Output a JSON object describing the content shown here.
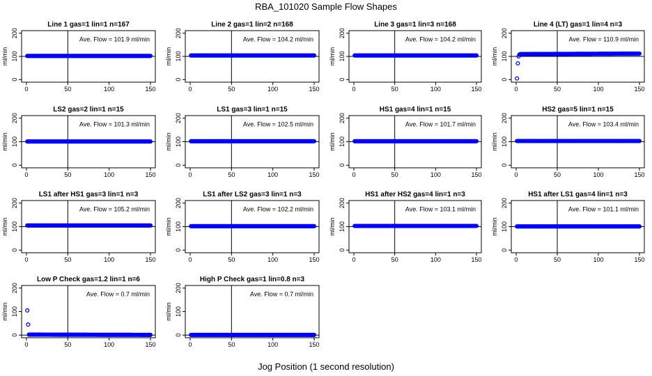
{
  "figure": {
    "title": "RBA_101020  Sample Flow Shapes",
    "xlabel": "Jog Position (1 second resolution)"
  },
  "colors": {
    "points": "#0000ff",
    "axes": "#000000",
    "background": "#ffffff"
  },
  "chart_data": [
    {
      "type": "scatter",
      "title": "Line 1 gas=1 lin=1 n=167",
      "ylabel": "ml/min",
      "xlim": [
        0,
        150
      ],
      "ylim": [
        0,
        200
      ],
      "xticks": [
        0,
        50,
        100,
        150
      ],
      "yticks": [
        0,
        100,
        200
      ],
      "hline": 100,
      "vline": 50,
      "annotation": "Ave. Flow =  101.9  ml/min",
      "series": [
        {
          "x": [
            1,
            150
          ],
          "y": [
            102,
            102
          ]
        }
      ]
    },
    {
      "type": "scatter",
      "title": "Line 2 gas=1 lin=2 n=168",
      "ylabel": "ml/min",
      "xlim": [
        0,
        150
      ],
      "ylim": [
        0,
        200
      ],
      "xticks": [
        0,
        50,
        100,
        150
      ],
      "yticks": [
        0,
        100,
        200
      ],
      "hline": 100,
      "vline": 50,
      "annotation": "Ave. Flow =  104.2  ml/min",
      "series": [
        {
          "x": [
            1,
            150
          ],
          "y": [
            104,
            104
          ]
        }
      ]
    },
    {
      "type": "scatter",
      "title": "Line 3 gas=1 lin=3 n=168",
      "ylabel": "ml/min",
      "xlim": [
        0,
        150
      ],
      "ylim": [
        0,
        200
      ],
      "xticks": [
        0,
        50,
        100,
        150
      ],
      "yticks": [
        0,
        100,
        200
      ],
      "hline": 100,
      "vline": 50,
      "annotation": "Ave. Flow =  104.2  ml/min",
      "series": [
        {
          "x": [
            1,
            150
          ],
          "y": [
            104,
            104
          ]
        }
      ]
    },
    {
      "type": "scatter",
      "title": "Line 4 (LT) gas=1 lin=4 n=3",
      "ylabel": "ml/min",
      "xlim": [
        0,
        150
      ],
      "ylim": [
        0,
        200
      ],
      "xticks": [
        0,
        50,
        100,
        150
      ],
      "yticks": [
        0,
        100,
        200
      ],
      "hline": 100,
      "vline": 50,
      "annotation": "Ave. Flow =  110.9  ml/min",
      "series": [
        {
          "x": [
            1,
            2,
            3,
            4,
            5,
            150
          ],
          "y": [
            5,
            70,
            100,
            108,
            110,
            112
          ]
        }
      ]
    },
    {
      "type": "scatter",
      "title": "LS2 gas=2 lin=1 n=15",
      "ylabel": "ml/min",
      "xlim": [
        0,
        150
      ],
      "ylim": [
        0,
        200
      ],
      "xticks": [
        0,
        50,
        100,
        150
      ],
      "yticks": [
        0,
        100,
        200
      ],
      "hline": 100,
      "vline": 50,
      "annotation": "Ave. Flow =  101.3  ml/min",
      "series": [
        {
          "x": [
            1,
            150
          ],
          "y": [
            101,
            101
          ]
        }
      ]
    },
    {
      "type": "scatter",
      "title": "LS1 gas=3 lin=1 n=15",
      "ylabel": "ml/min",
      "xlim": [
        0,
        150
      ],
      "ylim": [
        0,
        200
      ],
      "xticks": [
        0,
        50,
        100,
        150
      ],
      "yticks": [
        0,
        100,
        200
      ],
      "hline": 100,
      "vline": 50,
      "annotation": "Ave. Flow =  102.5  ml/min",
      "series": [
        {
          "x": [
            1,
            150
          ],
          "y": [
            102,
            102
          ]
        }
      ]
    },
    {
      "type": "scatter",
      "title": "HS1 gas=4 lin=1 n=15",
      "ylabel": "ml/min",
      "xlim": [
        0,
        150
      ],
      "ylim": [
        0,
        200
      ],
      "xticks": [
        0,
        50,
        100,
        150
      ],
      "yticks": [
        0,
        100,
        200
      ],
      "hline": 100,
      "vline": 50,
      "annotation": "Ave. Flow =  101.7  ml/min",
      "series": [
        {
          "x": [
            1,
            150
          ],
          "y": [
            102,
            102
          ]
        }
      ]
    },
    {
      "type": "scatter",
      "title": "HS2 gas=5 lin=1 n=15",
      "ylabel": "ml/min",
      "xlim": [
        0,
        150
      ],
      "ylim": [
        0,
        200
      ],
      "xticks": [
        0,
        50,
        100,
        150
      ],
      "yticks": [
        0,
        100,
        200
      ],
      "hline": 100,
      "vline": 50,
      "annotation": "Ave. Flow =  103.4  ml/min",
      "series": [
        {
          "x": [
            1,
            150
          ],
          "y": [
            103,
            103
          ]
        }
      ]
    },
    {
      "type": "scatter",
      "title": "LS1 after HS1 gas=3 lin=1 n=3",
      "ylabel": "ml/min",
      "xlim": [
        0,
        150
      ],
      "ylim": [
        0,
        200
      ],
      "xticks": [
        0,
        50,
        100,
        150
      ],
      "yticks": [
        0,
        100,
        200
      ],
      "hline": 100,
      "vline": 50,
      "annotation": "Ave. Flow =  105.2  ml/min",
      "series": [
        {
          "x": [
            1,
            150
          ],
          "y": [
            105,
            105
          ]
        }
      ]
    },
    {
      "type": "scatter",
      "title": "LS1 after LS2 gas=3 lin=1 n=3",
      "ylabel": "ml/min",
      "xlim": [
        0,
        150
      ],
      "ylim": [
        0,
        200
      ],
      "xticks": [
        0,
        50,
        100,
        150
      ],
      "yticks": [
        0,
        100,
        200
      ],
      "hline": 100,
      "vline": 50,
      "annotation": "Ave. Flow =  102.2  ml/min",
      "series": [
        {
          "x": [
            1,
            150
          ],
          "y": [
            102,
            102
          ]
        }
      ]
    },
    {
      "type": "scatter",
      "title": "HS1 after HS2 gas=4 lin=1 n=3",
      "ylabel": "ml/min",
      "xlim": [
        0,
        150
      ],
      "ylim": [
        0,
        200
      ],
      "xticks": [
        0,
        50,
        100,
        150
      ],
      "yticks": [
        0,
        100,
        200
      ],
      "hline": 100,
      "vline": 50,
      "annotation": "Ave. Flow =  103.1  ml/min",
      "series": [
        {
          "x": [
            1,
            150
          ],
          "y": [
            103,
            103
          ]
        }
      ]
    },
    {
      "type": "scatter",
      "title": "HS1 after LS1 gas=4 lin=1 n=3",
      "ylabel": "ml/min",
      "xlim": [
        0,
        150
      ],
      "ylim": [
        0,
        200
      ],
      "xticks": [
        0,
        50,
        100,
        150
      ],
      "yticks": [
        0,
        100,
        200
      ],
      "hline": 100,
      "vline": 50,
      "annotation": "Ave. Flow =  101.1  ml/min",
      "series": [
        {
          "x": [
            1,
            150
          ],
          "y": [
            101,
            101
          ]
        }
      ]
    },
    {
      "type": "scatter",
      "title": "Low P Check gas=1.2 lin=1 n=6",
      "ylabel": "ml/min",
      "xlim": [
        0,
        150
      ],
      "ylim": [
        0,
        200
      ],
      "xticks": [
        0,
        50,
        100,
        150
      ],
      "yticks": [
        0,
        100,
        200
      ],
      "hline": 0,
      "vline": 50,
      "annotation": "Ave. Flow =  0.7  ml/min",
      "series": [
        {
          "x": [
            1,
            2,
            3,
            150
          ],
          "y": [
            105,
            45,
            2,
            1
          ]
        }
      ]
    },
    {
      "type": "scatter",
      "title": "High P Check gas=1 lin=0.8 n=3",
      "ylabel": "ml/min",
      "xlim": [
        0,
        150
      ],
      "ylim": [
        0,
        200
      ],
      "xticks": [
        0,
        50,
        100,
        150
      ],
      "yticks": [
        0,
        100,
        200
      ],
      "hline": 0,
      "vline": 50,
      "annotation": "Ave. Flow =  0.7  ml/min",
      "series": [
        {
          "x": [
            1,
            150
          ],
          "y": [
            1,
            1
          ]
        }
      ]
    }
  ]
}
